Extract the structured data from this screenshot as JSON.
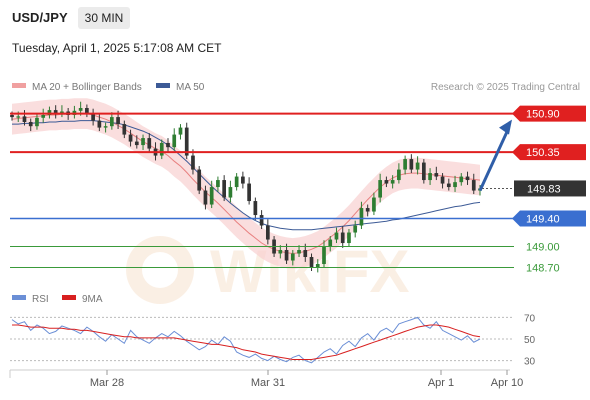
{
  "header": {
    "symbol": "USD/JPY",
    "timeframe": "30 MIN",
    "timestamp": "Tuesday, April 1, 2025 5:17:08 AM CET"
  },
  "legend": {
    "ma20_bb": "MA 20 + Bollinger Bands",
    "ma50": "MA 50",
    "rsi": "RSI",
    "ma9": "9MA"
  },
  "credit": "Research © 2025 Trading Central",
  "colors": {
    "red_level": "#e02020",
    "blue_level": "#3a6fd0",
    "green_level": "#3a9a3a",
    "price_box": "#333333",
    "ma50": "#3c5a96",
    "ma20": "#e88080",
    "bollinger": "#f5c6c6",
    "rsi": "#6b8fd6",
    "rsi_ma": "#d82020",
    "arrow": "#2f5ea8",
    "candle_up": "#2e7d32",
    "candle_down": "#333333"
  },
  "chart_data": [
    {
      "type": "candlestick",
      "title": "USD/JPY 30 MIN",
      "x_ticks": [
        "Mar 28",
        "Mar 31",
        "Apr 1",
        "Apr 10"
      ],
      "ylim": [
        148.55,
        150.98
      ],
      "levels": [
        {
          "label": "150.90",
          "value": 150.9,
          "kind": "resistance"
        },
        {
          "label": "150.35",
          "value": 150.35,
          "kind": "resistance"
        },
        {
          "label": "149.83",
          "value": 149.83,
          "kind": "current"
        },
        {
          "label": "149.40",
          "value": 149.4,
          "kind": "support"
        },
        {
          "label": "149.00",
          "value": 149.0,
          "kind": "support"
        },
        {
          "label": "148.70",
          "value": 148.7,
          "kind": "support"
        }
      ],
      "forecast_arrow": {
        "from": 149.83,
        "to": 150.9
      },
      "close_series": [
        150.85,
        150.86,
        150.78,
        150.72,
        150.84,
        150.88,
        150.95,
        150.9,
        150.93,
        150.88,
        150.94,
        150.98,
        150.9,
        150.8,
        150.7,
        150.72,
        150.85,
        150.75,
        150.6,
        150.5,
        150.45,
        150.55,
        150.4,
        150.3,
        150.48,
        150.42,
        150.6,
        150.7,
        150.3,
        150.1,
        149.8,
        149.6,
        149.85,
        149.95,
        149.7,
        149.85,
        150.0,
        149.9,
        149.65,
        149.45,
        149.3,
        149.1,
        148.9,
        148.95,
        148.8,
        148.9,
        148.95,
        148.85,
        148.7,
        148.75,
        149.0,
        149.1,
        149.2,
        149.05,
        149.2,
        149.3,
        149.55,
        149.5,
        149.7,
        149.95,
        149.9,
        149.95,
        150.1,
        150.25,
        150.1,
        150.2,
        149.95,
        150.05,
        150.0,
        149.9,
        149.85,
        149.92,
        150.0,
        149.95,
        149.8,
        149.83
      ],
      "ma50": [
        150.75,
        150.75,
        150.76,
        150.76,
        150.77,
        150.77,
        150.78,
        150.78,
        150.79,
        150.79,
        150.79,
        150.8,
        150.8,
        150.8,
        150.79,
        150.78,
        150.77,
        150.76,
        150.74,
        150.71,
        150.68,
        150.65,
        150.61,
        150.56,
        150.51,
        150.45,
        150.38,
        150.3,
        150.22,
        150.13,
        150.04,
        149.95,
        149.86,
        149.78,
        149.7,
        149.62,
        149.55,
        149.48,
        149.42,
        149.37,
        149.33,
        149.3,
        149.28,
        149.26,
        149.25,
        149.24,
        149.24,
        149.24,
        149.24,
        149.25,
        149.26,
        149.27,
        149.28,
        149.29,
        149.3,
        149.31,
        149.32,
        149.33,
        149.34,
        149.35,
        149.36,
        149.38,
        149.39,
        149.41,
        149.43,
        149.45,
        149.47,
        149.49,
        149.51,
        149.53,
        149.55,
        149.57,
        149.58,
        149.6,
        149.62,
        149.63
      ],
      "ma20": [
        150.82,
        150.83,
        150.84,
        150.85,
        150.86,
        150.87,
        150.88,
        150.88,
        150.89,
        150.89,
        150.9,
        150.9,
        150.9,
        150.88,
        150.85,
        150.82,
        150.78,
        150.73,
        150.68,
        150.62,
        150.56,
        150.5,
        150.45,
        150.4,
        150.36,
        150.3,
        150.22,
        150.15,
        150.06,
        149.96,
        149.87,
        149.78,
        149.7,
        149.62,
        149.53,
        149.44,
        149.35,
        149.27,
        149.19,
        149.12,
        149.05,
        149.0,
        148.96,
        148.93,
        148.91,
        148.9,
        148.91,
        148.93,
        148.96,
        149.0,
        149.06,
        149.13,
        149.2,
        149.28,
        149.37,
        149.47,
        149.57,
        149.67,
        149.76,
        149.85,
        149.92,
        149.98,
        150.02,
        150.04,
        150.05,
        150.05,
        150.04,
        150.03,
        150.02,
        150.01,
        150.0,
        149.99,
        149.98,
        149.97,
        149.96,
        149.95
      ],
      "bollinger_width": 0.22
    },
    {
      "type": "line",
      "title": "RSI",
      "x_ticks": [
        "Mar 28",
        "Mar 31",
        "Apr 1",
        "Apr 10"
      ],
      "yticks": [
        70,
        50,
        30
      ],
      "ylim": [
        25,
        75
      ],
      "series": [
        {
          "name": "RSI",
          "values": [
            68,
            64,
            66,
            58,
            63,
            60,
            55,
            57,
            62,
            60,
            58,
            55,
            61,
            57,
            52,
            48,
            54,
            50,
            46,
            58,
            52,
            49,
            46,
            51,
            55,
            52,
            57,
            53,
            48,
            44,
            40,
            43,
            49,
            45,
            52,
            48,
            38,
            35,
            33,
            36,
            32,
            30,
            34,
            31,
            29,
            33,
            35,
            30,
            28,
            33,
            38,
            41,
            36,
            44,
            48,
            43,
            51,
            55,
            49,
            57,
            60,
            56,
            64,
            66,
            68,
            70,
            63,
            60,
            66,
            58,
            55,
            52,
            49,
            53,
            47,
            50
          ]
        },
        {
          "name": "9MA",
          "values": [
            63,
            63,
            62,
            61,
            61,
            61,
            60,
            60,
            60,
            59,
            59,
            58,
            58,
            57,
            56,
            55,
            54,
            53,
            52,
            52,
            51,
            51,
            51,
            51,
            51,
            51,
            51,
            50,
            49,
            48,
            47,
            46,
            45,
            45,
            44,
            43,
            42,
            40,
            39,
            38,
            36,
            35,
            34,
            33,
            32,
            31,
            31,
            31,
            31,
            32,
            33,
            34,
            35,
            37,
            39,
            41,
            43,
            45,
            47,
            49,
            51,
            53,
            55,
            57,
            59,
            61,
            62,
            63,
            63,
            62,
            61,
            59,
            57,
            55,
            53,
            52
          ]
        }
      ]
    }
  ]
}
